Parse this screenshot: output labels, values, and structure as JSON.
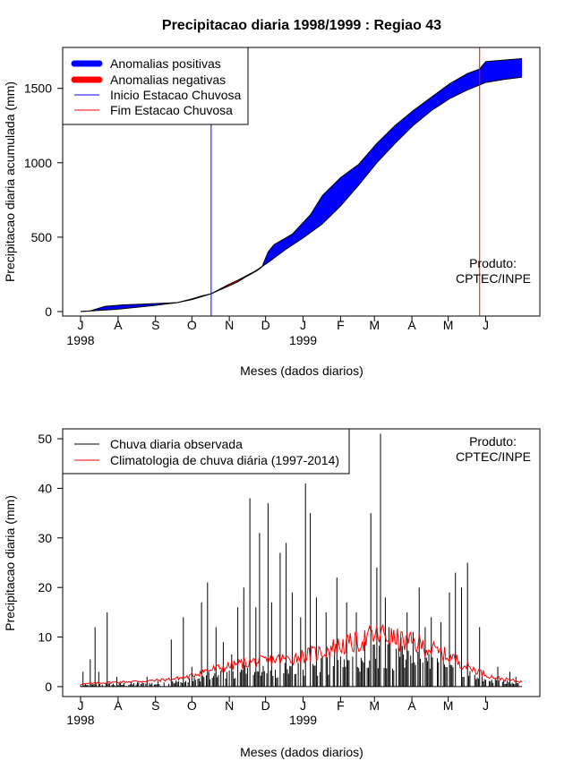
{
  "chart_data": [
    {
      "type": "area",
      "title": "Precipitacao diaria 1998/1999 : Regiao 43",
      "xlabel": "Meses (dados diarios)",
      "ylabel": "Precipitacao diaria acumulada (mm)",
      "xlim_days": [
        0,
        365
      ],
      "ylim": [
        -30,
        1775
      ],
      "yticks": [
        0,
        500,
        1000,
        1500
      ],
      "month_ticks": [
        "J",
        "A",
        "S",
        "O",
        "N",
        "D",
        "J",
        "F",
        "M",
        "A",
        "M",
        "J"
      ],
      "year_labels": [
        "1998",
        "1999"
      ],
      "legend": {
        "position": "top-left",
        "items": [
          {
            "label": "Anomalias positivas",
            "color": "#0000ff",
            "kind": "thick"
          },
          {
            "label": "Anomalias negativas",
            "color": "#ff0000",
            "kind": "thick"
          },
          {
            "label": "Inicio Estacao Chuvosa",
            "color": "#0000ff",
            "kind": "thin"
          },
          {
            "label": "Fim Estacao Chuvosa",
            "color": "#ff0000",
            "kind": "thin"
          }
        ]
      },
      "product_label": [
        "Produto:",
        "CPTEC/INPE"
      ],
      "rainy_season_start_day": 108,
      "rainy_season_end_day": 330,
      "observed_cumulative": {
        "x": [
          0,
          8,
          20,
          35,
          50,
          65,
          80,
          92,
          100,
          108,
          115,
          122,
          130,
          137,
          145,
          150,
          155,
          160,
          175,
          190,
          200,
          215,
          230,
          245,
          260,
          275,
          290,
          305,
          320,
          330,
          335,
          350,
          365
        ],
        "y": [
          0,
          5,
          35,
          45,
          50,
          55,
          60,
          85,
          105,
          120,
          145,
          170,
          200,
          235,
          270,
          300,
          400,
          450,
          520,
          650,
          780,
          900,
          990,
          1130,
          1250,
          1350,
          1440,
          1530,
          1600,
          1630,
          1680,
          1690,
          1700
        ]
      },
      "climatology_cumulative": {
        "x": [
          0,
          30,
          60,
          80,
          92,
          100,
          108,
          115,
          122,
          130,
          137,
          145,
          155,
          170,
          185,
          200,
          215,
          230,
          245,
          260,
          275,
          290,
          305,
          320,
          335,
          350,
          365
        ],
        "y": [
          0,
          15,
          40,
          60,
          80,
          100,
          120,
          150,
          180,
          210,
          240,
          275,
          330,
          420,
          500,
          590,
          710,
          850,
          1000,
          1130,
          1250,
          1350,
          1430,
          1490,
          1540,
          1560,
          1575
        ]
      },
      "colors": {
        "positive": "#0000ff",
        "negative": "#ff0000",
        "line": "#000000"
      }
    },
    {
      "type": "bar",
      "xlabel": "Meses (dados diarios)",
      "ylabel": "Precipitacao diaria (mm)",
      "xlim_days": [
        0,
        365
      ],
      "ylim": [
        -2,
        52
      ],
      "yticks": [
        0,
        10,
        20,
        30,
        40,
        50
      ],
      "month_ticks": [
        "J",
        "A",
        "S",
        "O",
        "N",
        "D",
        "J",
        "F",
        "M",
        "A",
        "M",
        "J"
      ],
      "year_labels": [
        "1998",
        "1999"
      ],
      "legend": {
        "position": "top-left",
        "items": [
          {
            "label": "Chuva diaria observada",
            "color": "#000000"
          },
          {
            "label": "Climatologia de chuva diária (1997-2014)",
            "color": "#ff0000"
          }
        ]
      },
      "product_label": [
        "Produto:",
        "CPTEC/INPE"
      ],
      "observed_daily_peaks": {
        "x": [
          2,
          8,
          12,
          15,
          22,
          30,
          55,
          75,
          85,
          92,
          100,
          105,
          112,
          118,
          125,
          130,
          135,
          140,
          145,
          148,
          155,
          158,
          165,
          170,
          175,
          182,
          186,
          190,
          195,
          200,
          203,
          212,
          220,
          228,
          235,
          240,
          245,
          248,
          252,
          255,
          265,
          270,
          275,
          280,
          285,
          290,
          298,
          305,
          310,
          315,
          320,
          330,
          345,
          355,
          360
        ],
        "y": [
          3,
          5.5,
          12,
          3,
          15,
          2,
          2,
          9.5,
          14,
          4,
          17,
          21,
          12,
          9,
          6.5,
          16,
          20,
          38,
          16,
          31,
          37,
          17,
          27,
          29,
          19,
          14,
          41,
          35,
          18,
          6,
          15,
          22,
          17,
          15,
          9,
          35,
          24,
          51,
          18,
          12,
          10,
          15,
          11,
          20,
          12,
          14,
          13,
          19,
          23,
          20,
          25,
          12,
          4,
          3,
          2
        ]
      },
      "climatology_daily": {
        "x": [
          0,
          20,
          40,
          60,
          75,
          90,
          100,
          110,
          120,
          130,
          140,
          150,
          160,
          170,
          180,
          190,
          200,
          210,
          220,
          230,
          240,
          250,
          260,
          270,
          280,
          290,
          300,
          310,
          320,
          330,
          340,
          350,
          365
        ],
        "y": [
          0.5,
          0.8,
          1,
          1.2,
          1.5,
          2,
          3,
          3.5,
          4,
          4.5,
          5,
          5,
          5.5,
          5.5,
          6,
          6.5,
          7,
          8,
          8.5,
          9,
          10,
          10.5,
          9.5,
          9,
          8.5,
          7.5,
          6.5,
          5.5,
          4,
          3,
          2,
          1.5,
          1
        ]
      },
      "colors": {
        "observed": "#000000",
        "climatology": "#ff0000"
      }
    }
  ]
}
